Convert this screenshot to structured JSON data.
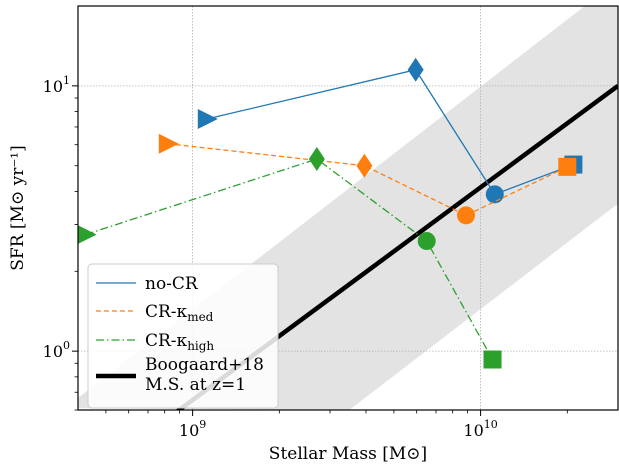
{
  "chart_data": {
    "type": "line",
    "xlabel": "Stellar Mass [M⊙]",
    "ylabel": "SFR [M⊙ yr⁻¹]",
    "xscale": "log",
    "yscale": "log",
    "xlim": [
      400000000.0,
      30000000000.0
    ],
    "ylim": [
      0.6,
      20
    ],
    "grid": "on",
    "legend_placement": "lower-left",
    "x_tick_labels": [
      {
        "value": 1000000000.0,
        "base": "10",
        "exp": "9"
      },
      {
        "value": 10000000000.0,
        "base": "10",
        "exp": "10"
      }
    ],
    "y_tick_labels": [
      {
        "value": 1,
        "base": "10",
        "exp": "0"
      },
      {
        "value": 10,
        "base": "10",
        "exp": "1"
      }
    ],
    "series": [
      {
        "name": "no-CR",
        "color": "#1f77b4",
        "linestyle": "solid",
        "points": [
          {
            "x": 1120000000.0,
            "y": 7.5,
            "marker": "triangle-right"
          },
          {
            "x": 5950000000.0,
            "y": 11.5,
            "marker": "diamond"
          },
          {
            "x": 11200000000.0,
            "y": 3.9,
            "marker": "circle"
          },
          {
            "x": 21000000000.0,
            "y": 5.05,
            "marker": "square"
          }
        ]
      },
      {
        "name": "CR-κ",
        "sub": "med",
        "color": "#ff7f0e",
        "linestyle": "dashed",
        "points": [
          {
            "x": 820000000.0,
            "y": 6.05,
            "marker": "triangle-right"
          },
          {
            "x": 3950000000.0,
            "y": 5.0,
            "marker": "diamond"
          },
          {
            "x": 8900000000.0,
            "y": 3.25,
            "marker": "circle"
          },
          {
            "x": 20000000000.0,
            "y": 4.95,
            "marker": "square"
          }
        ]
      },
      {
        "name": "CR-κ",
        "sub": "high",
        "color": "#2ca02c",
        "linestyle": "dashdot",
        "points": [
          {
            "x": 425000000.0,
            "y": 2.75,
            "marker": "triangle-right"
          },
          {
            "x": 2700000000.0,
            "y": 5.3,
            "marker": "diamond"
          },
          {
            "x": 6500000000.0,
            "y": 2.6,
            "marker": "circle"
          },
          {
            "x": 11000000000.0,
            "y": 0.93,
            "marker": "square"
          }
        ]
      }
    ],
    "main_sequence": {
      "name": "Boogaard+18",
      "name_line2": "M.S. at z=1",
      "color": "#000000",
      "band_color": "#e3e3e3",
      "line": [
        {
          "x": 550000000.0,
          "y": 0.405
        },
        {
          "x": 30000000000.0,
          "y": 10.0
        }
      ],
      "band_upper": [
        {
          "x": 360000000.0,
          "y": 0.61
        },
        {
          "x": 30000000000.0,
          "y": 25.0
        }
      ],
      "band_lower": [
        {
          "x": 3500000000.0,
          "y": 0.6
        },
        {
          "x": 30000000000.0,
          "y": 3.6
        }
      ]
    }
  }
}
